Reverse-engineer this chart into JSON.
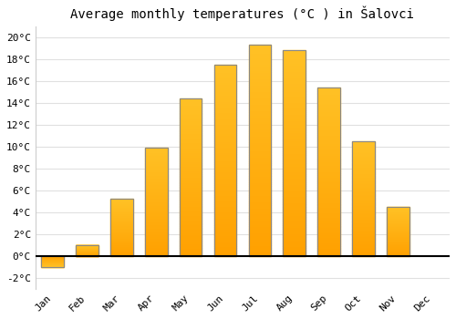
{
  "title": "Average monthly temperatures (°C ) in Šalovci",
  "months": [
    "Jan",
    "Feb",
    "Mar",
    "Apr",
    "May",
    "Jun",
    "Jul",
    "Aug",
    "Sep",
    "Oct",
    "Nov",
    "Dec"
  ],
  "values": [
    -1.0,
    1.0,
    5.2,
    9.9,
    14.4,
    17.5,
    19.3,
    18.8,
    15.4,
    10.5,
    4.5,
    0.0
  ],
  "bar_color_top": "#FFC125",
  "bar_color_bottom": "#FFA000",
  "bar_edge_color": "#888888",
  "bar_width": 0.65,
  "ylim": [
    -3,
    21
  ],
  "yticks": [
    -2,
    0,
    2,
    4,
    6,
    8,
    10,
    12,
    14,
    16,
    18,
    20
  ],
  "ytick_labels": [
    "-2°C",
    "0°C",
    "2°C",
    "4°C",
    "6°C",
    "8°C",
    "10°C",
    "12°C",
    "14°C",
    "16°C",
    "18°C",
    "20°C"
  ],
  "background_color": "#ffffff",
  "grid_color": "#e0e0e0",
  "title_fontsize": 10,
  "tick_fontsize": 8,
  "font_family": "monospace",
  "figsize": [
    5.0,
    3.5
  ],
  "dpi": 100
}
